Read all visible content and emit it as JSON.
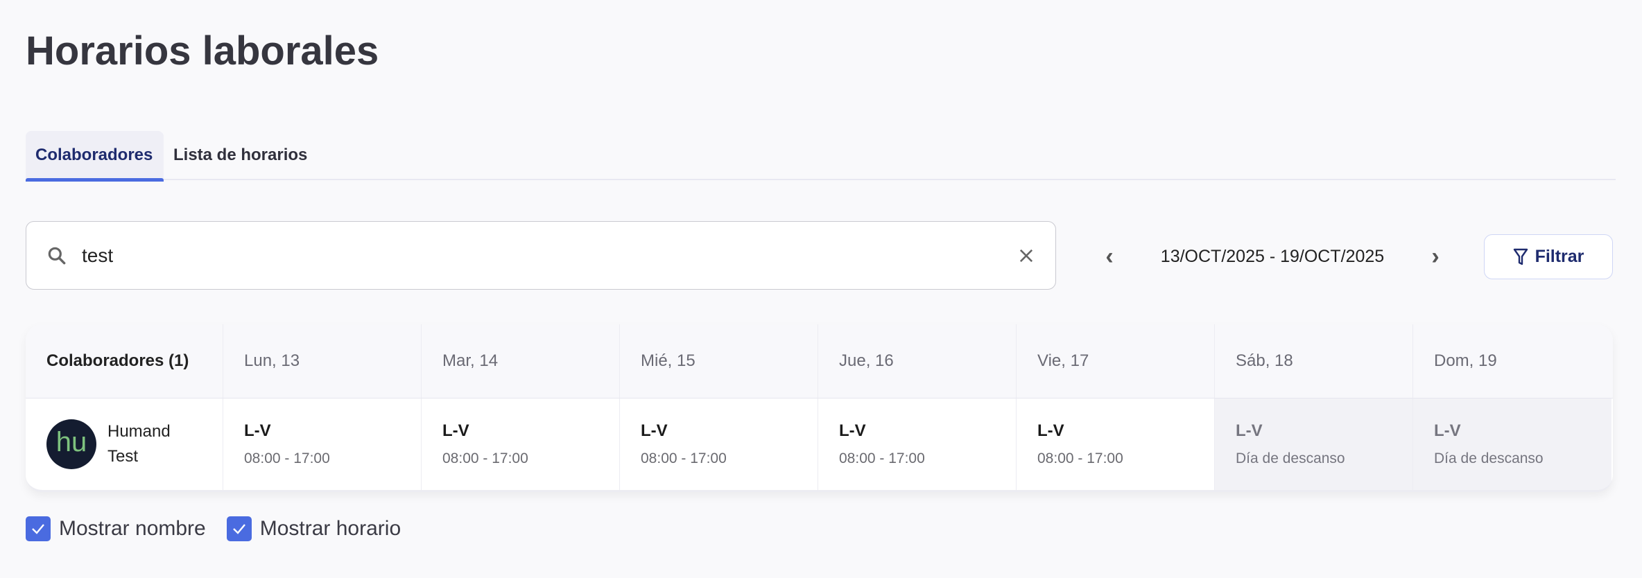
{
  "page": {
    "title": "Horarios laborales"
  },
  "tabs": [
    {
      "label": "Colaboradores",
      "active": true
    },
    {
      "label": "Lista de horarios",
      "active": false
    }
  ],
  "search": {
    "value": "test",
    "icon": "search-icon",
    "clear_icon": "close-icon"
  },
  "date_nav": {
    "range": "13/OCT/2025 - 19/OCT/2025",
    "prev_icon": "chevron-left-icon",
    "next_icon": "chevron-right-icon"
  },
  "filter": {
    "label": "Filtrar",
    "icon": "filter-icon"
  },
  "table": {
    "headers": [
      "Colaboradores (1)",
      "Lun, 13",
      "Mar, 14",
      "Mié, 15",
      "Jue, 16",
      "Vie, 17",
      "Sáb, 18",
      "Dom, 19"
    ],
    "rows": [
      {
        "first_name": "Humand",
        "last_name": "Test",
        "avatar_text": "hu",
        "days": [
          {
            "schedule": "L-V",
            "time": "08:00 - 17:00",
            "rest": false
          },
          {
            "schedule": "L-V",
            "time": "08:00 - 17:00",
            "rest": false
          },
          {
            "schedule": "L-V",
            "time": "08:00 - 17:00",
            "rest": false
          },
          {
            "schedule": "L-V",
            "time": "08:00 - 17:00",
            "rest": false
          },
          {
            "schedule": "L-V",
            "time": "08:00 - 17:00",
            "rest": false
          },
          {
            "schedule": "L-V",
            "time": "Día de descanso",
            "rest": true
          },
          {
            "schedule": "L-V",
            "time": "Día de descanso",
            "rest": true
          }
        ]
      }
    ]
  },
  "options": {
    "show_name": {
      "label": "Mostrar nombre",
      "checked": true
    },
    "show_schedule": {
      "label": "Mostrar horario",
      "checked": true
    }
  },
  "colors": {
    "accent": "#4a6be0",
    "tab_active_text": "#1e2b6e",
    "avatar_bg": "#141c30",
    "avatar_text": "#7ec27e"
  }
}
